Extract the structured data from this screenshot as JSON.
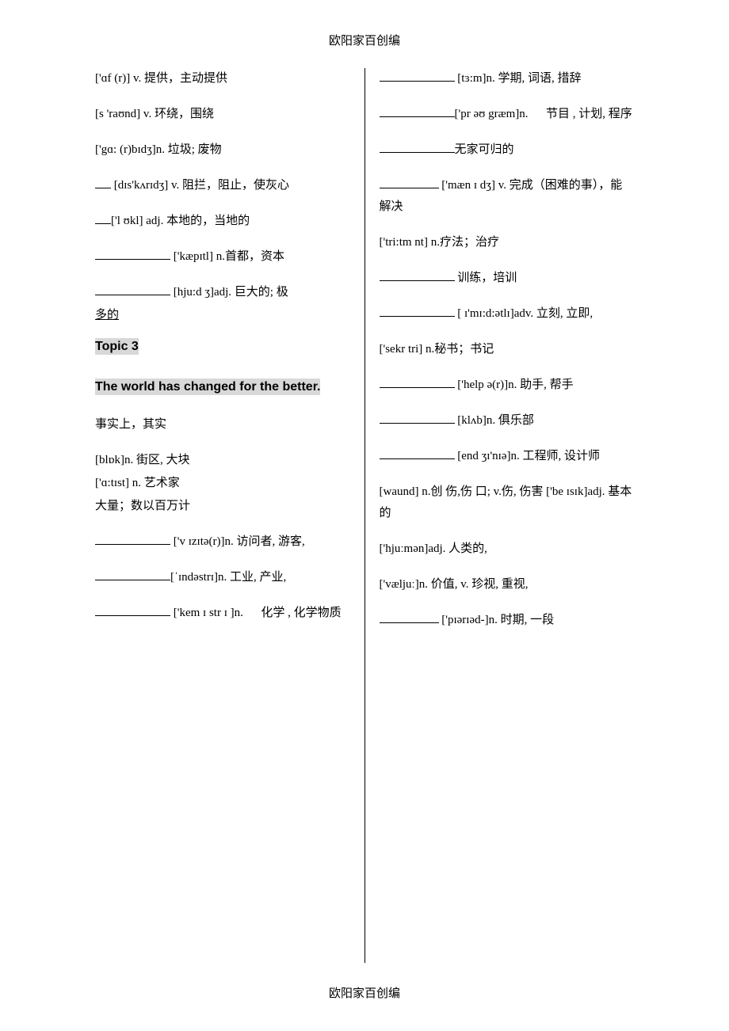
{
  "header": "欧阳家百创编",
  "footer": "欧阳家百创编",
  "left_column": {
    "e1": "['ɑf (r)] v. 提供，主动提供",
    "e2": "[s 'raʊnd] v. 环绕，围绕",
    "e3": "['gɑ: (r)bɪdʒ]n.   垃圾; 废物",
    "e4": " [dɪs'kʌrɪdʒ] v. 阻拦，阻止，使灰心",
    "e5": "['l  ʊkl] adj. 本地的，当地的",
    "e6": " ['kæpɪtl] n.首都，资本",
    "e7": " [hju:d ʒ]adj.  巨大的; 极",
    "e7b": "多的",
    "topic_label": "Topic 3",
    "topic_title": "The world has changed for the better.",
    "e8": "事实上，其实",
    "e9": "[blɒk]n.   街区, 大块",
    "e10": "['ɑ:tɪst] n.   艺术家",
    "e11": "大量；数以百万计",
    "e12": " ['v ɪzɪtə(r)]n.   访问者, 游客,",
    "e13": "[ˈɪndəstrɪ]n.   工业, 产业,",
    "e14": " ['kem ɪ str ɪ ]n. 　 化学 , 化学物质"
  },
  "right_column": {
    "e1": " [tɜ:m]n.   学期, 词语, 措辞",
    "e2": "['pr əʊ græm]n. 　 节目 , 计划, 程序",
    "e3": "无家可归的",
    "e4": " ['mæn ɪ dʒ] v. 完成（困难的事），能解决",
    "e5": "['tri:tm nt] n.疗法；治疗",
    "e6": " 训练，培训",
    "e7": " [ ɪ'mɪ:d:ətlɪ]adv.   立刻, 立即,",
    "e8": "['sekr tri] n.秘书；书记",
    "e9": " ['help ə(r)]n.   助手,  帮手",
    "e10": " [klʌb]n.   俱乐部",
    "e11": " [end ʒɪ'nɪə]n.   工程师, 设计师",
    "e12": "[waund] n.创 伤,伤 口; v.伤, 伤害 ['be ɪsɪk]adj.   基本的",
    "e13": "['hjuːmən]adj.   人类的,",
    "e14": "['væljuː]n.   价值, v.   珍视, 重视,",
    "e15": " ['pɪərɪəd-]n.   时期,  一段"
  }
}
